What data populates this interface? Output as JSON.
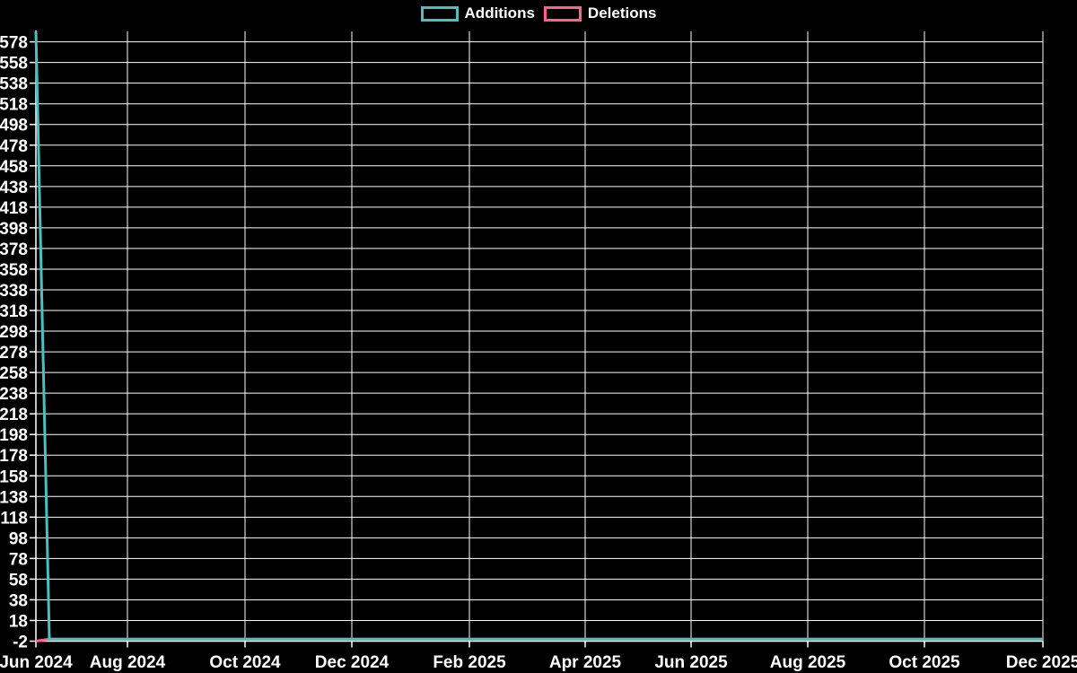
{
  "background_color": "#000000",
  "text_color": "#ffffff",
  "grid_color": "#ffffff",
  "legend": {
    "items": [
      {
        "label": "Additions",
        "color": "#4bc0c0"
      },
      {
        "label": "Deletions",
        "color": "#ff6384"
      }
    ]
  },
  "chart_data": {
    "type": "line",
    "title": "",
    "xlabel": "",
    "ylabel": "",
    "grid": true,
    "legend_position": "top-center",
    "ylim": [
      -2,
      588
    ],
    "y_tick_step": 20,
    "y_tick_labels": [
      "578",
      "558",
      "538",
      "518",
      "498",
      "478",
      "458",
      "438",
      "418",
      "398",
      "378",
      "358",
      "338",
      "318",
      "298",
      "278",
      "258",
      "238",
      "218",
      "198",
      "178",
      "158",
      "138",
      "118",
      "98",
      "78",
      "58",
      "38",
      "18",
      "-2"
    ],
    "x_tick_labels": [
      "Jun 2024",
      "Aug 2024",
      "Oct 2024",
      "Dec 2024",
      "Feb 2025",
      "Apr 2025",
      "Jun 2025",
      "Aug 2025",
      "Oct 2025",
      "Dec 2025"
    ],
    "series": [
      {
        "name": "Additions",
        "color": "#4bc0c0",
        "points": [
          {
            "x": "Jun 2024 (first week)",
            "y": 588
          },
          {
            "x": "Jun 2024 (second week)",
            "y": 0
          },
          {
            "x": "Dec 2025 (end)",
            "y": 0
          }
        ],
        "note": "value stays 0 from second week through Dec 2025"
      },
      {
        "name": "Deletions",
        "color": "#ff6384",
        "points": [
          {
            "x": "Jun 2024 (first week)",
            "y": -2
          },
          {
            "x": "Jun 2024 (second week)",
            "y": 0
          },
          {
            "x": "Dec 2025 (end)",
            "y": 0
          }
        ],
        "note": "value stays 0 from second week through Dec 2025"
      }
    ]
  }
}
